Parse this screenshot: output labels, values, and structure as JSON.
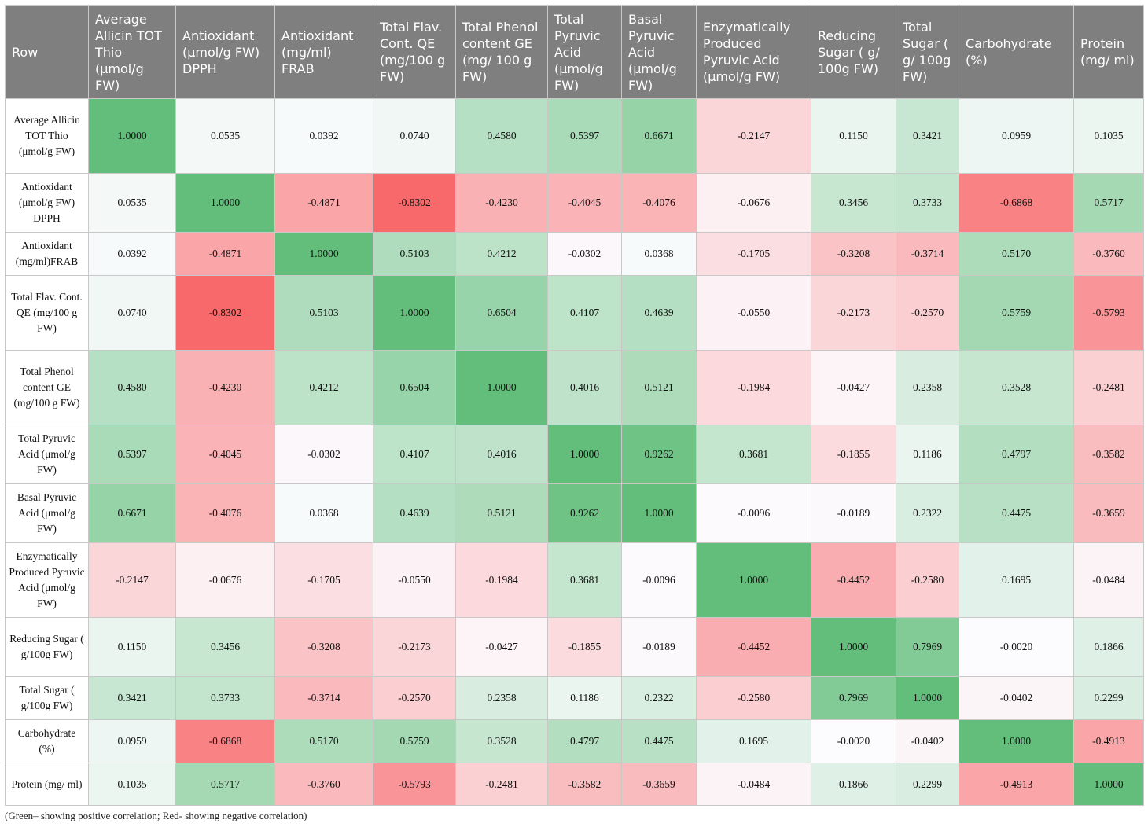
{
  "table": {
    "header": [
      "Row",
      "Average Allicin TOT Thio (μmol/g FW)",
      "Antioxidant (μmol/g FW) DPPH",
      "Antioxidant (mg/ml) FRAB",
      "Total Flav. Cont. QE (mg/100 g FW)",
      "Total Phenol content GE (mg/ 100 g FW)",
      "Total Pyruvic Acid (μmol/g FW)",
      "Basal Pyruvic Acid (μmol/g FW)",
      "Enzymatically Produced Pyruvic Acid (μmol/g FW)",
      "Reducing Sugar ( g/ 100g FW)",
      "Total Sugar ( g/ 100g FW)",
      "Carbohydrate (%)",
      "Protein (mg/ ml)"
    ],
    "rows": [
      [
        "Average Allicin TOT Thio (μmol/g FW)",
        "1.0000",
        "0.0535",
        "0.0392",
        "0.0740",
        "0.4580",
        "0.5397",
        "0.6671",
        "-0.2147",
        "0.1150",
        "0.3421",
        "0.0959",
        "0.1035"
      ],
      [
        "Antioxidant (μmol/g FW) DPPH",
        "0.0535",
        "1.0000",
        "-0.4871",
        "-0.8302",
        "-0.4230",
        "-0.4045",
        "-0.4076",
        "-0.0676",
        "0.3456",
        "0.3733",
        "-0.6868",
        "0.5717"
      ],
      [
        "Antioxidant (mg/ml)FRAB",
        "0.0392",
        "-0.4871",
        "1.0000",
        "0.5103",
        "0.4212",
        "-0.0302",
        "0.0368",
        "-0.1705",
        "-0.3208",
        "-0.3714",
        "0.5170",
        "-0.3760"
      ],
      [
        "Total Flav. Cont. QE (mg/100 g FW)",
        "0.0740",
        "-0.8302",
        "0.5103",
        "1.0000",
        "0.6504",
        "0.4107",
        "0.4639",
        "-0.0550",
        "-0.2173",
        "-0.2570",
        "0.5759",
        "-0.5793"
      ],
      [
        "Total Phenol content GE (mg/100 g FW)",
        "0.4580",
        "-0.4230",
        "0.4212",
        "0.6504",
        "1.0000",
        "0.4016",
        "0.5121",
        "-0.1984",
        "-0.0427",
        "0.2358",
        "0.3528",
        "-0.2481"
      ],
      [
        "Total Pyruvic Acid (μmol/g FW)",
        "0.5397",
        "-0.4045",
        "-0.0302",
        "0.4107",
        "0.4016",
        "1.0000",
        "0.9262",
        "0.3681",
        "-0.1855",
        "0.1186",
        "0.4797",
        "-0.3582"
      ],
      [
        "Basal Pyruvic Acid (μmol/g FW)",
        "0.6671",
        "-0.4076",
        "0.0368",
        "0.4639",
        "0.5121",
        "0.9262",
        "1.0000",
        "-0.0096",
        "-0.0189",
        "0.2322",
        "0.4475",
        "-0.3659"
      ],
      [
        "Enzymatically Produced Pyruvic Acid (μmol/g FW)",
        "-0.2147",
        "-0.0676",
        "-0.1705",
        "-0.0550",
        "-0.1984",
        "0.3681",
        "-0.0096",
        "1.0000",
        "-0.4452",
        "-0.2580",
        "0.1695",
        "-0.0484"
      ],
      [
        "Reducing Sugar ( g/100g FW)",
        "0.1150",
        "0.3456",
        "-0.3208",
        "-0.2173",
        "-0.0427",
        "-0.1855",
        "-0.0189",
        "-0.4452",
        "1.0000",
        "0.7969",
        "-0.0020",
        "0.1866"
      ],
      [
        "Total Sugar ( g/100g FW)",
        "0.3421",
        "0.3733",
        "-0.3714",
        "-0.2570",
        "0.2358",
        "0.1186",
        "0.2322",
        "-0.2580",
        "0.7969",
        "1.0000",
        "-0.0402",
        "0.2299"
      ],
      [
        "Carbohydrate (%)",
        "0.0959",
        "-0.6868",
        "0.5170",
        "0.5759",
        "0.3528",
        "0.4797",
        "0.4475",
        "0.1695",
        "-0.0020",
        "-0.0402",
        "1.0000",
        "-0.4913"
      ],
      [
        "Protein (mg/ ml)",
        "0.1035",
        "0.5717",
        "-0.3760",
        "-0.5793",
        "-0.2481",
        "-0.3582",
        "-0.3659",
        "-0.0484",
        "0.1866",
        "0.2299",
        "-0.4913",
        "1.0000"
      ]
    ],
    "footnote": "(Green– showing positive correlation; Red- showing negative correlation)"
  }
}
